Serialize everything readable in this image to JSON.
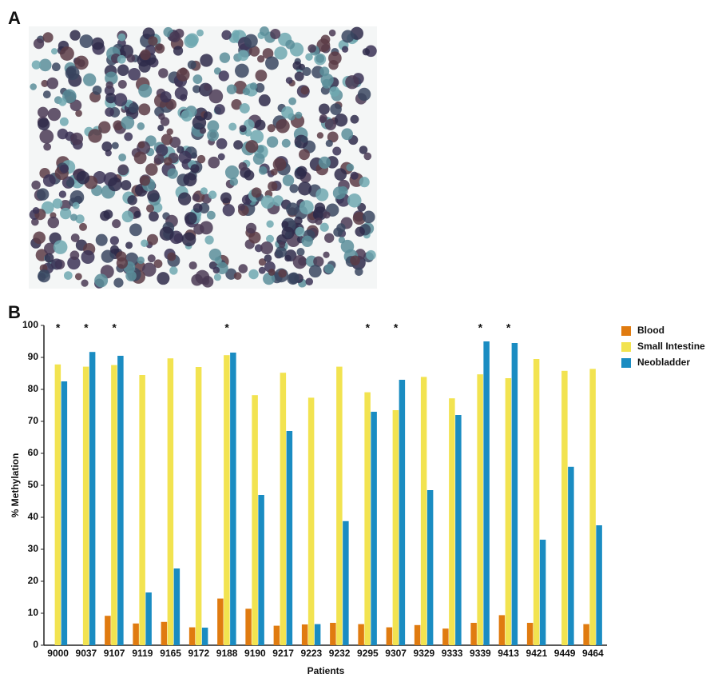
{
  "panel_labels": {
    "a": "A",
    "b": "B"
  },
  "chart_data": {
    "type": "bar",
    "x_label": "Patients",
    "y_label": "% Methylation",
    "categories": [
      "9000",
      "9037",
      "9107",
      "9119",
      "9165",
      "9172",
      "9188",
      "9190",
      "9217",
      "9223",
      "9232",
      "9295",
      "9307",
      "9329",
      "9333",
      "9339",
      "9413",
      "9421",
      "9449",
      "9464"
    ],
    "significance_markers": [
      "*",
      "*",
      "*",
      null,
      null,
      null,
      "*",
      null,
      null,
      null,
      null,
      "*",
      "*",
      null,
      null,
      "*",
      "*",
      null,
      null,
      null
    ],
    "series": [
      {
        "name": "Blood",
        "color": "#e07b10",
        "values": [
          null,
          null,
          9.2,
          6.8,
          7.3,
          5.6,
          14.6,
          11.4,
          6.1,
          6.5,
          7,
          6.6,
          5.6,
          6.3,
          5.2,
          7,
          9.4,
          7,
          null,
          6.6
        ]
      },
      {
        "name": "Small Intestine",
        "color": "#f2e350",
        "values": [
          87.8,
          87.1,
          87.6,
          84.5,
          89.7,
          87,
          90.7,
          78.2,
          85.2,
          77.4,
          87.1,
          79.1,
          73.5,
          83.9,
          77.2,
          84.7,
          83.5,
          89.5,
          85.8,
          86.4
        ]
      },
      {
        "name": "Neobladder",
        "color": "#1a8cc2",
        "values": [
          82.5,
          91.7,
          90.5,
          16.5,
          24,
          5.5,
          91.5,
          47,
          67,
          6.6,
          38.8,
          73,
          83,
          48.5,
          72,
          95,
          94.5,
          33,
          55.8,
          37.5
        ]
      }
    ],
    "ylim": [
      0,
      100
    ],
    "yticks": [
      0,
      10,
      20,
      30,
      40,
      50,
      60,
      70,
      80,
      90,
      100
    ],
    "legend": "upper-right",
    "grid": false
  }
}
